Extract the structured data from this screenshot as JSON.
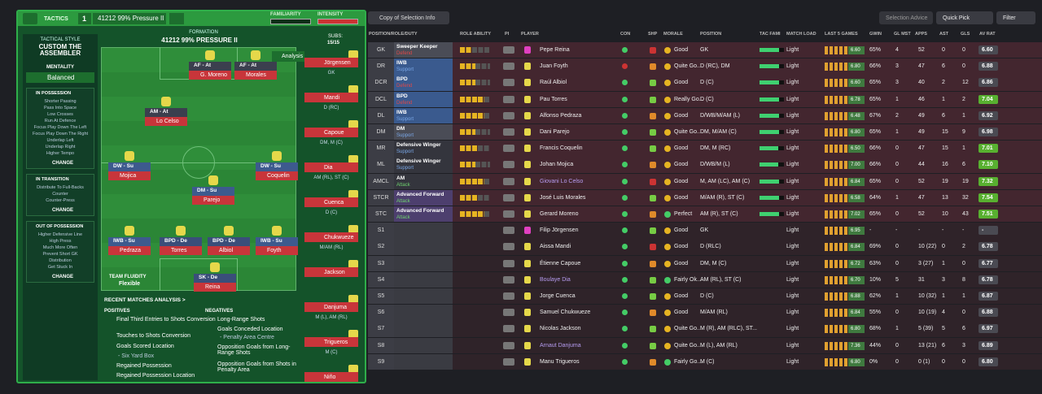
{
  "header": {
    "tactics": "TACTICS",
    "tactic_number": "1",
    "tactic_name": "41212 99% Pressure II",
    "familiarity": "FAMILIARITY",
    "intensity": "INTENSITY"
  },
  "sidebar": {
    "style_label": "TACTICAL STYLE",
    "style_name": "CUSTOM THE ASSEMBLER",
    "mentality_label": "MENTALITY",
    "mentality": "Balanced",
    "sections": [
      {
        "title": "IN POSSESSION",
        "items": [
          "Shorter Passing",
          "Pass Into Space",
          "Low Crosses",
          "Run At Defence",
          "Focus Play Down The Left",
          "Focus Play Down The Right",
          "Underlap Left",
          "Underlap Right",
          "Higher Tempo"
        ],
        "button": "CHANGE"
      },
      {
        "title": "IN TRANSITION",
        "items": [
          "Distribute To Full-Backs",
          "Counter",
          "Counter-Press"
        ],
        "button": "CHANGE"
      },
      {
        "title": "OUT OF POSSESSION",
        "items": [
          "Higher Defensive Line",
          "High Press",
          "Much More Often",
          "Prevent Short GK",
          "Distribution",
          "Get Stuck In"
        ],
        "button": "CHANGE"
      }
    ]
  },
  "pitch": {
    "formation_label": "FORMATION",
    "formation": "41212 99% PRESSURE II",
    "subs_label": "SUBS:",
    "subs": "15/15",
    "analysis": "Analysis",
    "fluidity_label": "TEAM FLUIDITY",
    "fluidity": "Flexible",
    "players": [
      {
        "role": "AF - At",
        "name": "G. Moreno"
      },
      {
        "role": "AF - At",
        "name": "Morales"
      },
      {
        "role": "AM - At",
        "name": "Lo Celso"
      },
      {
        "role": "DW - Su",
        "name": "Mojica"
      },
      {
        "role": "DW - Su",
        "name": "Coquelin"
      },
      {
        "role": "DM - Su",
        "name": "Parejo"
      },
      {
        "role": "IWB - Su",
        "name": "Pedraza"
      },
      {
        "role": "BPD - De",
        "name": "Torres"
      },
      {
        "role": "BPD - De",
        "name": "Albiol"
      },
      {
        "role": "IWB - Su",
        "name": "Foyth"
      },
      {
        "role": "SK - De",
        "name": "Reina"
      }
    ],
    "bench": [
      {
        "name": "Jörgensen",
        "position": "GK"
      },
      {
        "name": "Mandi",
        "position": "D (RC)"
      },
      {
        "name": "Capoue",
        "position": "DM, M (C)"
      },
      {
        "name": "Dia",
        "position": "AM (RL), ST (C)"
      },
      {
        "name": "Cuenca",
        "position": "D (C)"
      },
      {
        "name": "Chukwueze",
        "position": "M/AM (RL)"
      },
      {
        "name": "Jackson",
        "position": ""
      },
      {
        "name": "Danjuma",
        "position": "M (L), AM (RL)"
      },
      {
        "name": "Trigueros",
        "position": "M (C)"
      },
      {
        "name": "Niño",
        "position": ""
      }
    ]
  },
  "analysis": {
    "title": "RECENT MATCHES ANALYSIS >",
    "positives_label": "POSITIVES",
    "positives": [
      "Final Third Entries to Shots Conversion",
      "Touches to Shots Conversion",
      "Goals Scored Location",
      "- Six Yard Box",
      "Regained Possession",
      "Regained Possession Location"
    ],
    "negatives_label": "NEGATIVES",
    "negatives": [
      "Long-Range Shots",
      "Goals Conceded Location",
      "- Penalty Area Centre",
      "Opposition Goals from Long-Range Shots",
      "Opposition Goals from Shots in Penalty Area"
    ]
  },
  "toolbar": {
    "copy": "Copy of Selection Info",
    "advice": "Selection Advice",
    "quick_pick": "Quick Pick",
    "filter": "Filter"
  },
  "table": {
    "columns": [
      "POSITION/ROLE/DUTY",
      "ROLE ABILITY",
      "PI",
      "PLAYER",
      "CON",
      "SHP",
      "MORALE",
      "POSITION",
      "TAC FAMI",
      "MATCH LOAD",
      "LAST 5 GAMES",
      "GWIN",
      "GL MST",
      "APPS",
      "AST",
      "GLS",
      "AV RAT"
    ],
    "rows": [
      {
        "code": "GK",
        "role": "Sweeper Keeper",
        "duty": "Defend",
        "stars": 2,
        "player": "Pepe Reina",
        "morale": "Good",
        "position": "GK",
        "tac_fami": 80,
        "load": "Light",
        "last5": "6.60",
        "gwin": "65%",
        "glmst": "4",
        "apps": "52",
        "ast": "0",
        "gls": "0",
        "avrat": "6.60"
      },
      {
        "code": "DR",
        "role": "IWB",
        "duty": "Support",
        "stars": 2.5,
        "player": "Juan Foyth",
        "morale": "Quite Go...",
        "position": "D (RC), DM",
        "tac_fami": 80,
        "load": "Light",
        "last5": "6.80",
        "gwin": "66%",
        "glmst": "3",
        "apps": "47",
        "ast": "6",
        "gls": "0",
        "avrat": "6.88"
      },
      {
        "code": "DCR",
        "role": "BPD",
        "duty": "Defend",
        "stars": 2.5,
        "player": "Raúl Albiol",
        "morale": "Good",
        "position": "D (C)",
        "tac_fami": 80,
        "load": "Light",
        "last5": "6.60",
        "gwin": "65%",
        "glmst": "3",
        "apps": "40",
        "ast": "2",
        "gls": "12",
        "avrat": "6.86"
      },
      {
        "code": "DCL",
        "role": "BPD",
        "duty": "Defend",
        "stars": 4,
        "player": "Pau Torres",
        "morale": "Really Go...",
        "position": "D (C)",
        "tac_fami": 80,
        "load": "Light",
        "last5": "6.78",
        "gwin": "65%",
        "glmst": "1",
        "apps": "46",
        "ast": "1",
        "gls": "2",
        "avrat": "7.04"
      },
      {
        "code": "DL",
        "role": "IWB",
        "duty": "Support",
        "stars": 4,
        "player": "Alfonso Pedraza",
        "morale": "Good",
        "position": "D/WB/M/AM (L)",
        "tac_fami": 80,
        "load": "Light",
        "last5": "6.48",
        "gwin": "67%",
        "glmst": "2",
        "apps": "49",
        "ast": "6",
        "gls": "1",
        "avrat": "6.92"
      },
      {
        "code": "DM",
        "role": "DM",
        "duty": "Support",
        "stars": 2.5,
        "player": "Dani Parejo",
        "morale": "Quite Go...",
        "position": "DM, M/AM (C)",
        "tac_fami": 80,
        "load": "Light",
        "last5": "6.80",
        "gwin": "65%",
        "glmst": "1",
        "apps": "49",
        "ast": "15",
        "gls": "9",
        "avrat": "6.98"
      },
      {
        "code": "MR",
        "role": "Defensive Winger",
        "duty": "Support",
        "stars": 3,
        "player": "Francis Coquelin",
        "morale": "Good",
        "position": "DM, M (RC)",
        "tac_fami": 75,
        "load": "Light",
        "last5": "6.50",
        "gwin": "66%",
        "glmst": "0",
        "apps": "47",
        "ast": "15",
        "gls": "1",
        "avrat": "7.01"
      },
      {
        "code": "ML",
        "role": "Defensive Winger",
        "duty": "Support",
        "stars": 2.5,
        "player": "Johan Mojica",
        "morale": "Good",
        "position": "D/WB/M (L)",
        "tac_fami": 75,
        "load": "Light",
        "last5": "7.00",
        "gwin": "66%",
        "glmst": "0",
        "apps": "44",
        "ast": "16",
        "gls": "6",
        "avrat": "7.10"
      },
      {
        "code": "AMCL",
        "role": "AM",
        "duty": "Attack",
        "stars": 4,
        "player": "Giovani Lo Celso",
        "morale": "Good",
        "position": "M, AM (LC), AM (C)",
        "tac_fami": 80,
        "load": "Light",
        "last5": "6.84",
        "gwin": "65%",
        "glmst": "0",
        "apps": "52",
        "ast": "19",
        "gls": "19",
        "avrat": "7.32"
      },
      {
        "code": "STCR",
        "role": "Advanced Forward",
        "duty": "Attack",
        "stars": 3,
        "player": "José Luis Morales",
        "morale": "Good",
        "position": "M/AM (R), ST (C)",
        "tac_fami": 80,
        "load": "Light",
        "last5": "6.58",
        "gwin": "64%",
        "glmst": "1",
        "apps": "47",
        "ast": "13",
        "gls": "32",
        "avrat": "7.54"
      },
      {
        "code": "STC",
        "role": "Advanced Forward",
        "duty": "Attack",
        "stars": 4,
        "player": "Gerard Moreno",
        "morale": "Perfect",
        "position": "AM (R), ST (C)",
        "tac_fami": 80,
        "load": "Light",
        "last5": "7.02",
        "gwin": "65%",
        "glmst": "0",
        "apps": "52",
        "ast": "10",
        "gls": "43",
        "avrat": "7.51"
      },
      {
        "code": "S1",
        "player": "Filip Jörgensen",
        "morale": "Good",
        "position": "GK",
        "load": "Light",
        "last5": "6.95",
        "gwin": "-",
        "glmst": "-",
        "apps": "-",
        "ast": "-",
        "gls": "-",
        "avrat": "-"
      },
      {
        "code": "S2",
        "player": "Aissa Mandi",
        "morale": "Good",
        "position": "D (RLC)",
        "load": "Light",
        "last5": "6.84",
        "gwin": "69%",
        "glmst": "0",
        "apps": "10 (22)",
        "ast": "0",
        "gls": "2",
        "avrat": "6.78"
      },
      {
        "code": "S3",
        "player": "Étienne Capoue",
        "morale": "Good",
        "position": "DM, M (C)",
        "load": "Light",
        "last5": "6.72",
        "gwin": "63%",
        "glmst": "0",
        "apps": "3 (27)",
        "ast": "1",
        "gls": "0",
        "avrat": "6.77"
      },
      {
        "code": "S4",
        "player": "Boulaye Dia",
        "morale": "Fairly Ok...",
        "position": "AM (RL), ST (C)",
        "load": "Light",
        "last5": "6.70",
        "gwin": "10%",
        "glmst": "5",
        "apps": "31",
        "ast": "3",
        "gls": "8",
        "avrat": "6.78"
      },
      {
        "code": "S5",
        "player": "Jorge Cuenca",
        "morale": "Good",
        "position": "D (C)",
        "load": "Light",
        "last5": "6.88",
        "gwin": "62%",
        "glmst": "1",
        "apps": "10 (32)",
        "ast": "1",
        "gls": "1",
        "avrat": "6.87"
      },
      {
        "code": "S6",
        "player": "Samuel Chukwueze",
        "morale": "Good",
        "position": "M/AM (RL)",
        "load": "Light",
        "last5": "6.84",
        "gwin": "55%",
        "glmst": "0",
        "apps": "10 (19)",
        "ast": "4",
        "gls": "0",
        "avrat": "6.88"
      },
      {
        "code": "S7",
        "player": "Nicolas Jackson",
        "morale": "Quite Go...",
        "position": "M (R), AM (RLC), ST...",
        "load": "Light",
        "last5": "6.80",
        "gwin": "68%",
        "glmst": "1",
        "apps": "5 (39)",
        "ast": "5",
        "gls": "6",
        "avrat": "6.97"
      },
      {
        "code": "S8",
        "player": "Arnaut Danjuma",
        "morale": "Quite Go...",
        "position": "M (L), AM (RL)",
        "load": "Light",
        "last5": "7.36",
        "gwin": "44%",
        "glmst": "0",
        "apps": "13 (21)",
        "ast": "6",
        "gls": "3",
        "avrat": "6.89"
      },
      {
        "code": "S9",
        "player": "Manu Trigueros",
        "morale": "Fairly Go...",
        "position": "M (C)",
        "load": "Light",
        "last5": "6.80",
        "gwin": "0%",
        "glmst": "0",
        "apps": "0 (1)",
        "ast": "0",
        "gls": "0",
        "avrat": "6.80"
      }
    ]
  }
}
